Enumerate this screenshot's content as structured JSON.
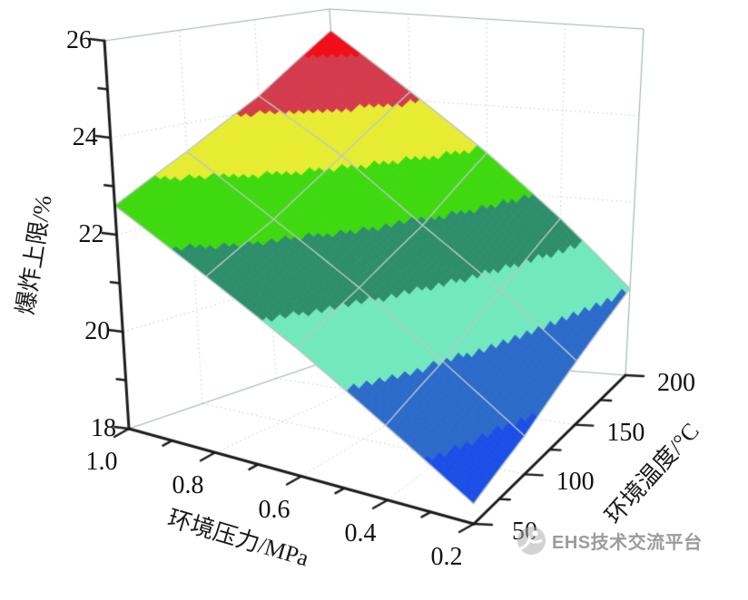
{
  "axes": {
    "z": {
      "label": "爆炸上限/%",
      "major_ticks": [
        "26",
        "24",
        "22",
        "20",
        "18"
      ],
      "minor_ticks": [
        25,
        23,
        21,
        19
      ],
      "range": [
        18,
        26
      ]
    },
    "pressure": {
      "label": "环境压力/MPa",
      "major_ticks": [
        "1.0",
        "0.8",
        "0.6",
        "0.4",
        "0.2"
      ],
      "minor_ticks": [
        0.9,
        0.7,
        0.5,
        0.3
      ],
      "range": [
        1.0,
        0.2
      ]
    },
    "temperature": {
      "label": "环境温度/°C",
      "major_ticks": [
        "50",
        "100",
        "150",
        "200"
      ],
      "minor_ticks": [
        75,
        125,
        175
      ],
      "range": [
        50,
        200
      ]
    }
  },
  "chart_data": {
    "type": "surface",
    "title": "",
    "x": {
      "label": "环境压力/MPa",
      "values": [
        1.0,
        0.8,
        0.6,
        0.4,
        0.2
      ]
    },
    "y": {
      "label": "环境温度/°C",
      "values": [
        50,
        100,
        150,
        200
      ]
    },
    "z": {
      "label": "爆炸上限/%",
      "range": [
        18,
        26
      ],
      "matrix_by_pressure": [
        [
          22.6,
          23.4,
          24.3,
          25.5
        ],
        [
          21.6,
          22.3,
          23.2,
          24.2
        ],
        [
          20.6,
          21.2,
          21.9,
          22.9
        ],
        [
          19.5,
          20.0,
          20.7,
          21.5
        ],
        [
          18.4,
          18.8,
          19.4,
          20.0
        ]
      ]
    },
    "color_bands": [
      {
        "z_min": 25,
        "z_max": 26.5,
        "color": "#f20d18"
      },
      {
        "z_min": 24,
        "z_max": 25,
        "color": "#d43b4c"
      },
      {
        "z_min": 23,
        "z_max": 24,
        "color": "#e7ec32"
      },
      {
        "z_min": 22,
        "z_max": 23,
        "color": "#3fd90f"
      },
      {
        "z_min": 21,
        "z_max": 22,
        "color": "#2e8e6c"
      },
      {
        "z_min": 20,
        "z_max": 21,
        "color": "#72e8bd"
      },
      {
        "z_min": 19,
        "z_max": 20,
        "color": "#2c6bca"
      },
      {
        "z_min": 17,
        "z_max": 19,
        "color": "#1c4fe8"
      }
    ],
    "grid": true,
    "legend": false
  },
  "watermark": {
    "text": "EHS技术交流平台",
    "icon": "person-in-circle-logo"
  },
  "colors": {
    "background": "#ffffff",
    "axis": "#1b1b1b",
    "mesh_line": "#bcc7c7",
    "wall_grid": "#ccd6d6",
    "box_rim": "#9db1b1"
  }
}
